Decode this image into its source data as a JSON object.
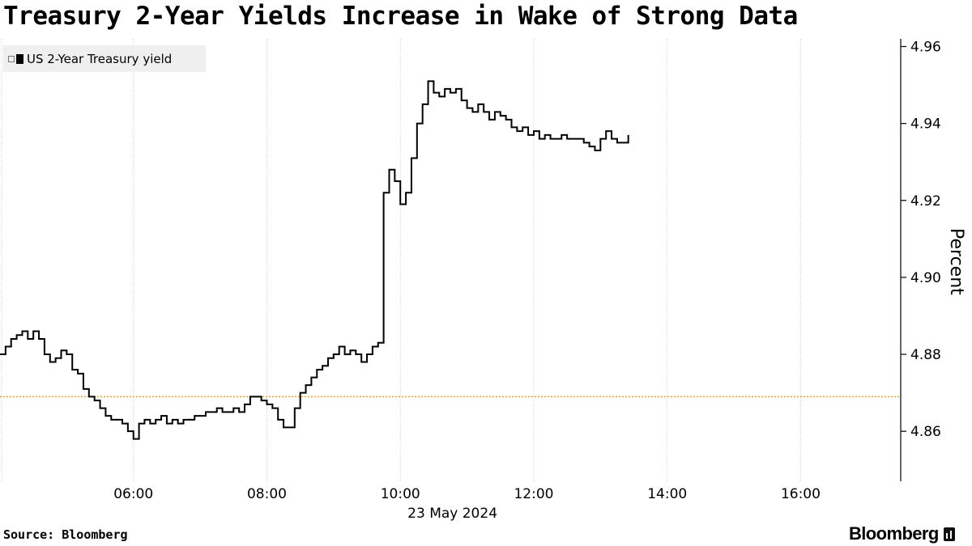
{
  "title": "Treasury 2-Year Yields Increase in Wake of Strong Data",
  "source": "Source: Bloomberg",
  "brand": "Bloomberg",
  "chart_data": {
    "type": "line",
    "title": "Treasury 2-Year Yields Increase in Wake of Strong Data",
    "date_label": "23 May 2024",
    "ylabel": "Percent",
    "x_unit": "time of day",
    "ylim": [
      4.847,
      4.962
    ],
    "xlim": [
      "04:00",
      "17:30"
    ],
    "y_ticks": [
      "4.86",
      "4.88",
      "4.90",
      "4.92",
      "4.94",
      "4.96"
    ],
    "x_ticks": [
      "06:00",
      "08:00",
      "10:00",
      "12:00",
      "14:00",
      "16:00"
    ],
    "reference_line": 4.869,
    "line_color": "#000000",
    "reference_color": "#e6a817",
    "legend_position": "top-left",
    "grid": "vertical dotted",
    "series": [
      {
        "name": "US 2-Year Treasury yield",
        "points": [
          [
            "04:00",
            4.88
          ],
          [
            "04:05",
            4.882
          ],
          [
            "04:10",
            4.884
          ],
          [
            "04:15",
            4.885
          ],
          [
            "04:20",
            4.886
          ],
          [
            "04:25",
            4.884
          ],
          [
            "04:30",
            4.886
          ],
          [
            "04:35",
            4.884
          ],
          [
            "04:40",
            4.88
          ],
          [
            "04:45",
            4.878
          ],
          [
            "04:50",
            4.879
          ],
          [
            "04:55",
            4.881
          ],
          [
            "05:00",
            4.88
          ],
          [
            "05:05",
            4.876
          ],
          [
            "05:10",
            4.875
          ],
          [
            "05:15",
            4.871
          ],
          [
            "05:20",
            4.869
          ],
          [
            "05:25",
            4.868
          ],
          [
            "05:30",
            4.866
          ],
          [
            "05:35",
            4.864
          ],
          [
            "05:40",
            4.863
          ],
          [
            "05:45",
            4.863
          ],
          [
            "05:50",
            4.862
          ],
          [
            "05:55",
            4.86
          ],
          [
            "06:00",
            4.858
          ],
          [
            "06:05",
            4.862
          ],
          [
            "06:10",
            4.863
          ],
          [
            "06:15",
            4.862
          ],
          [
            "06:20",
            4.863
          ],
          [
            "06:25",
            4.864
          ],
          [
            "06:30",
            4.862
          ],
          [
            "06:35",
            4.863
          ],
          [
            "06:40",
            4.862
          ],
          [
            "06:45",
            4.863
          ],
          [
            "06:50",
            4.863
          ],
          [
            "06:55",
            4.864
          ],
          [
            "07:00",
            4.864
          ],
          [
            "07:05",
            4.865
          ],
          [
            "07:10",
            4.865
          ],
          [
            "07:15",
            4.866
          ],
          [
            "07:20",
            4.865
          ],
          [
            "07:25",
            4.865
          ],
          [
            "07:30",
            4.866
          ],
          [
            "07:35",
            4.865
          ],
          [
            "07:40",
            4.867
          ],
          [
            "07:45",
            4.869
          ],
          [
            "07:50",
            4.869
          ],
          [
            "07:55",
            4.868
          ],
          [
            "08:00",
            4.867
          ],
          [
            "08:05",
            4.866
          ],
          [
            "08:10",
            4.863
          ],
          [
            "08:15",
            4.861
          ],
          [
            "08:20",
            4.861
          ],
          [
            "08:25",
            4.866
          ],
          [
            "08:30",
            4.87
          ],
          [
            "08:35",
            4.872
          ],
          [
            "08:40",
            4.874
          ],
          [
            "08:45",
            4.876
          ],
          [
            "08:50",
            4.877
          ],
          [
            "08:55",
            4.879
          ],
          [
            "09:00",
            4.88
          ],
          [
            "09:05",
            4.882
          ],
          [
            "09:10",
            4.88
          ],
          [
            "09:15",
            4.881
          ],
          [
            "09:20",
            4.88
          ],
          [
            "09:25",
            4.878
          ],
          [
            "09:30",
            4.88
          ],
          [
            "09:35",
            4.882
          ],
          [
            "09:40",
            4.883
          ],
          [
            "09:45",
            4.922
          ],
          [
            "09:50",
            4.928
          ],
          [
            "09:55",
            4.925
          ],
          [
            "10:00",
            4.919
          ],
          [
            "10:05",
            4.922
          ],
          [
            "10:10",
            4.931
          ],
          [
            "10:15",
            4.94
          ],
          [
            "10:20",
            4.945
          ],
          [
            "10:25",
            4.951
          ],
          [
            "10:30",
            4.948
          ],
          [
            "10:35",
            4.947
          ],
          [
            "10:40",
            4.949
          ],
          [
            "10:45",
            4.948
          ],
          [
            "10:50",
            4.949
          ],
          [
            "10:55",
            4.946
          ],
          [
            "11:00",
            4.944
          ],
          [
            "11:05",
            4.943
          ],
          [
            "11:10",
            4.945
          ],
          [
            "11:15",
            4.943
          ],
          [
            "11:20",
            4.941
          ],
          [
            "11:25",
            4.943
          ],
          [
            "11:30",
            4.942
          ],
          [
            "11:35",
            4.941
          ],
          [
            "11:40",
            4.939
          ],
          [
            "11:45",
            4.938
          ],
          [
            "11:50",
            4.939
          ],
          [
            "11:55",
            4.937
          ],
          [
            "12:00",
            4.938
          ],
          [
            "12:05",
            4.936
          ],
          [
            "12:10",
            4.937
          ],
          [
            "12:15",
            4.936
          ],
          [
            "12:20",
            4.936
          ],
          [
            "12:25",
            4.937
          ],
          [
            "12:30",
            4.936
          ],
          [
            "12:35",
            4.936
          ],
          [
            "12:40",
            4.936
          ],
          [
            "12:45",
            4.935
          ],
          [
            "12:50",
            4.934
          ],
          [
            "12:55",
            4.933
          ],
          [
            "13:00",
            4.936
          ],
          [
            "13:05",
            4.938
          ],
          [
            "13:10",
            4.936
          ],
          [
            "13:15",
            4.935
          ],
          [
            "13:20",
            4.935
          ],
          [
            "13:25",
            4.937
          ]
        ]
      }
    ]
  }
}
